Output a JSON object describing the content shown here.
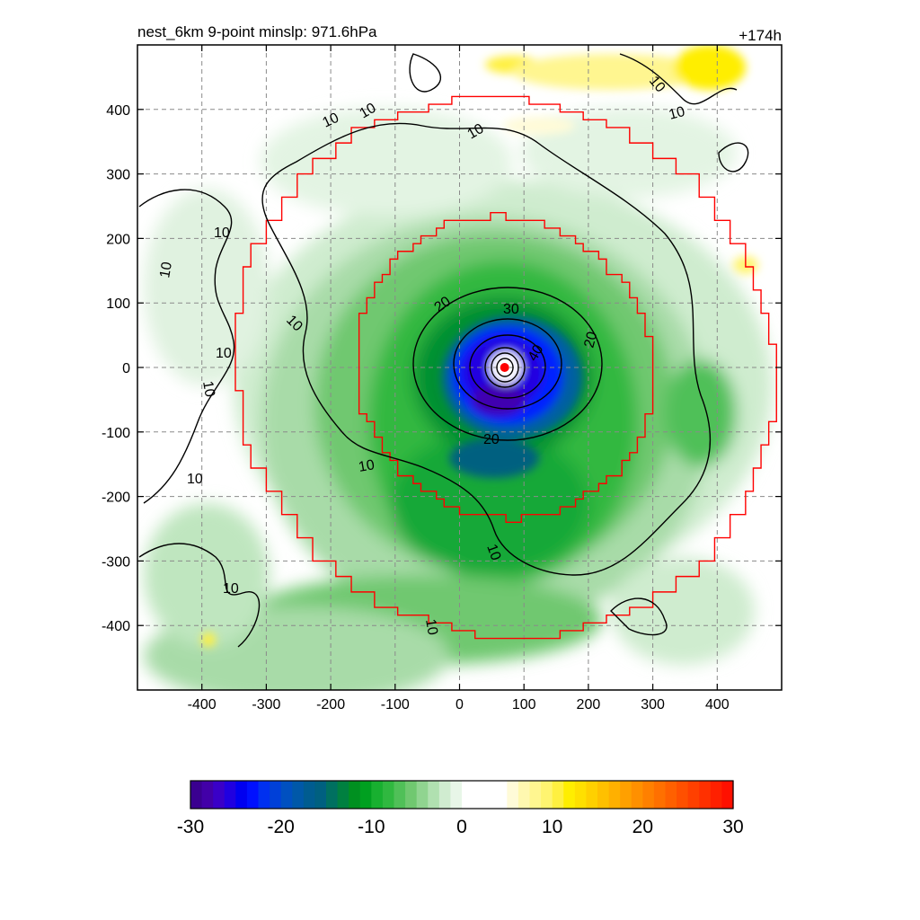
{
  "chart_data": {
    "type": "heatmap",
    "title_left": "nest_6km  9-point minslp: 971.6hPa",
    "title_right": "+174h",
    "xlim": [
      -500,
      500
    ],
    "ylim": [
      -500,
      500
    ],
    "x_ticks": [
      -400,
      -300,
      -200,
      -100,
      0,
      100,
      200,
      300,
      400
    ],
    "y_ticks": [
      -400,
      -300,
      -200,
      -100,
      0,
      100,
      200,
      300,
      400
    ],
    "grid": true,
    "colorbar": {
      "range": [
        -30,
        30
      ],
      "ticks": [
        -30,
        -20,
        -10,
        0,
        10,
        20,
        30
      ],
      "colors": [
        "#3a0090",
        "#4200a8",
        "#3a00c8",
        "#2000e0",
        "#0000f0",
        "#0010ff",
        "#0030f0",
        "#0040d8",
        "#0050c0",
        "#0058a8",
        "#005c90",
        "#006080",
        "#007060",
        "#008040",
        "#009020",
        "#00a020",
        "#18b030",
        "#30b840",
        "#50c058",
        "#70c870",
        "#90d490",
        "#b0e0b0",
        "#d0ecd0",
        "#e8f6e8",
        "#ffffff",
        "#ffffff",
        "#ffffff",
        "#ffffff",
        "#fffbd8",
        "#fff8b0",
        "#fff690",
        "#fff470",
        "#fff040",
        "#ffee00",
        "#ffe000",
        "#ffd000",
        "#ffc000",
        "#ffb000",
        "#ffa000",
        "#ff9000",
        "#ff8000",
        "#ff7000",
        "#ff6000",
        "#ff5000",
        "#ff4000",
        "#ff3000",
        "#ff2000",
        "#ff1000"
      ]
    },
    "contour_levels": [
      10,
      20,
      30,
      40
    ],
    "center_marker": {
      "x": 70,
      "y": 0,
      "color": "#ff0000"
    },
    "red_boundaries": [
      {
        "name": "outer",
        "radius": 420
      },
      {
        "name": "inner",
        "radius": 230
      }
    ]
  }
}
